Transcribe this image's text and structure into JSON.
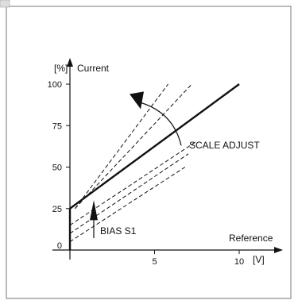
{
  "diagram": {
    "y_unit": "[%]",
    "y_label": "Current",
    "x_label": "Reference",
    "x_unit": "[V]",
    "y_ticks": [
      {
        "value": 0,
        "label": "0"
      },
      {
        "value": 25,
        "label": "25"
      },
      {
        "value": 50,
        "label": "50"
      },
      {
        "value": 75,
        "label": "75"
      },
      {
        "value": 100,
        "label": "100"
      }
    ],
    "x_ticks": [
      {
        "value": 5,
        "label": "5"
      },
      {
        "value": 10,
        "label": "10"
      }
    ],
    "annotations": {
      "scale_adjust": "SCALE ADJUST",
      "bias": "BIAS S1"
    },
    "main_line": {
      "x": [
        0,
        10
      ],
      "y": [
        25,
        100
      ]
    },
    "dashed_lines_upper": [
      {
        "x": [
          0.3,
          5.8
        ],
        "y": [
          25,
          100
        ]
      },
      {
        "x": [
          0.3,
          7.2
        ],
        "y": [
          25,
          100
        ]
      }
    ],
    "dashed_lines_lower": [
      {
        "x": [
          0,
          6.8
        ],
        "y": [
          5,
          50
        ]
      },
      {
        "x": [
          0,
          7.0
        ],
        "y": [
          10,
          58
        ]
      },
      {
        "x": [
          0,
          7.4
        ],
        "y": [
          15,
          65
        ]
      }
    ],
    "colors": {
      "stroke": "#111111",
      "frame": "#666666"
    }
  }
}
